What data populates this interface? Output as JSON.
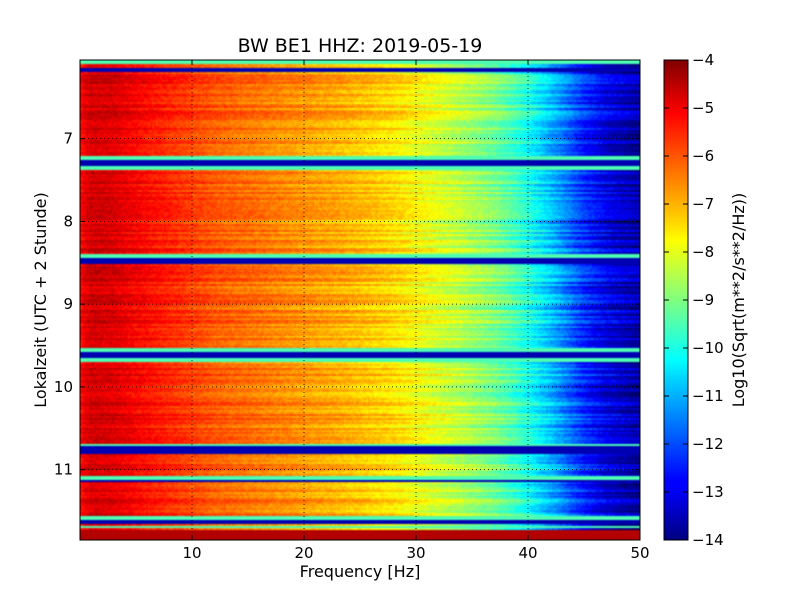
{
  "chart_data": {
    "type": "heatmap",
    "title": "BW BE1 HHZ: 2019-05-19",
    "xlabel": "Frequency [Hz]",
    "ylabel": "Lokalzeit (UTC + 2 Stunde)",
    "xlim": [
      0,
      50
    ],
    "ylim": [
      6.05,
      11.85
    ],
    "y_inverted": true,
    "x_ticks": [
      10,
      20,
      30,
      40,
      50
    ],
    "x_tick_labels": [
      "10",
      "20",
      "30",
      "40",
      "50"
    ],
    "y_ticks": [
      7,
      8,
      9,
      10,
      11
    ],
    "y_tick_labels": [
      "7",
      "8",
      "9",
      "10",
      "11"
    ],
    "grid": true,
    "colormap": "jet",
    "colorbar": {
      "label": "Log10(Sqrt(m**2/s**2/Hz))",
      "min": -14,
      "max": -4,
      "ticks": [
        -4,
        -5,
        -6,
        -7,
        -8,
        -9,
        -10,
        -11,
        -12,
        -13,
        -14
      ],
      "tick_labels": [
        "−4",
        "−5",
        "−6",
        "−7",
        "−8",
        "−9",
        "−10",
        "−11",
        "−12",
        "−13",
        "−14"
      ]
    },
    "spectral_profile": {
      "frequency_hz": [
        0,
        0.5,
        1,
        3,
        5,
        8,
        12,
        16,
        20,
        24,
        28,
        31,
        34,
        37,
        39,
        41,
        43,
        45,
        47,
        50
      ],
      "log10_amplitude": [
        -5.3,
        -5.0,
        -4.8,
        -4.9,
        -5.2,
        -5.6,
        -6.1,
        -6.4,
        -6.7,
        -7.0,
        -7.4,
        -7.9,
        -8.4,
        -9.0,
        -9.6,
        -10.4,
        -11.3,
        -12.3,
        -13.0,
        -13.6
      ]
    },
    "data_gaps": [
      {
        "start": 6.05,
        "end": 6.09,
        "value": -9.5
      },
      {
        "start": 6.15,
        "end": 6.19,
        "value": -13.5
      },
      {
        "start": 7.22,
        "end": 7.26,
        "value": -9.5
      },
      {
        "start": 7.26,
        "end": 7.32,
        "value": -13.5
      },
      {
        "start": 7.34,
        "end": 7.37,
        "value": -9.5
      },
      {
        "start": 8.4,
        "end": 8.44,
        "value": -9.5
      },
      {
        "start": 8.44,
        "end": 8.52,
        "value": -13.5
      },
      {
        "start": 9.53,
        "end": 9.57,
        "value": -9.5
      },
      {
        "start": 9.57,
        "end": 9.64,
        "value": -13.5
      },
      {
        "start": 9.66,
        "end": 9.69,
        "value": -9.5
      },
      {
        "start": 10.68,
        "end": 10.71,
        "value": -9.5
      },
      {
        "start": 10.71,
        "end": 10.82,
        "value": -13.5
      },
      {
        "start": 11.08,
        "end": 11.12,
        "value": -9.5
      },
      {
        "start": 11.12,
        "end": 11.16,
        "value": -13.5
      },
      {
        "start": 11.57,
        "end": 11.6,
        "value": -9.5
      },
      {
        "start": 11.6,
        "end": 11.66,
        "value": -13.5
      },
      {
        "start": 11.68,
        "end": 11.71,
        "value": -9.5
      },
      {
        "start": 11.74,
        "end": 11.85,
        "value": -4.5
      }
    ]
  }
}
